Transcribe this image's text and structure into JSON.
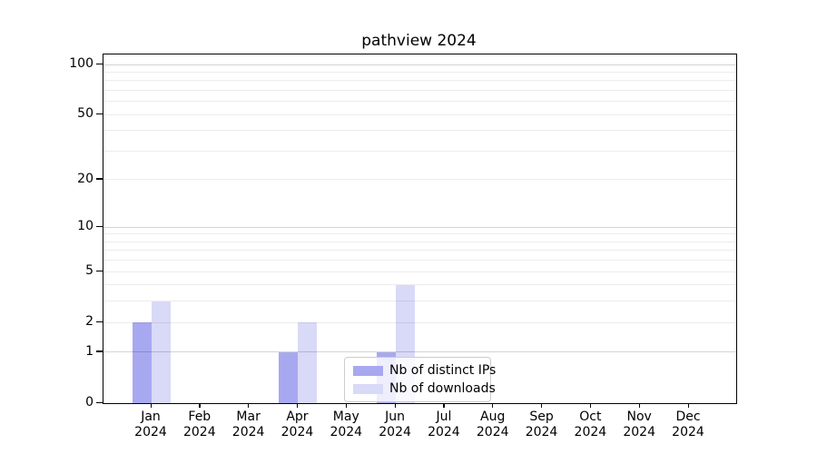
{
  "chart_data": {
    "type": "bar",
    "title": "pathview 2024",
    "categories": [
      "Jan",
      "Feb",
      "Mar",
      "Apr",
      "May",
      "Jun",
      "Jul",
      "Aug",
      "Sep",
      "Oct",
      "Nov",
      "Dec"
    ],
    "category_year": "2024",
    "series": [
      {
        "name": "Nb of distinct IPs",
        "color": "#a8a8f0",
        "values": [
          2,
          0,
          0,
          1,
          0,
          1,
          0,
          0,
          0,
          0,
          0,
          0
        ]
      },
      {
        "name": "Nb of downloads",
        "color": "#d9d9f8",
        "values": [
          3,
          0,
          0,
          2,
          0,
          4,
          0,
          0,
          0,
          0,
          0,
          0
        ]
      }
    ],
    "xlabel": "",
    "ylabel": "",
    "y_ticks": [
      0,
      1,
      2,
      5,
      10,
      20,
      50,
      100
    ],
    "y_scale": "log10(1+v)",
    "ylim": [
      0,
      113
    ],
    "grid": "horizontal minor and major gridlines",
    "legend_position": "lower center, inside plot"
  }
}
